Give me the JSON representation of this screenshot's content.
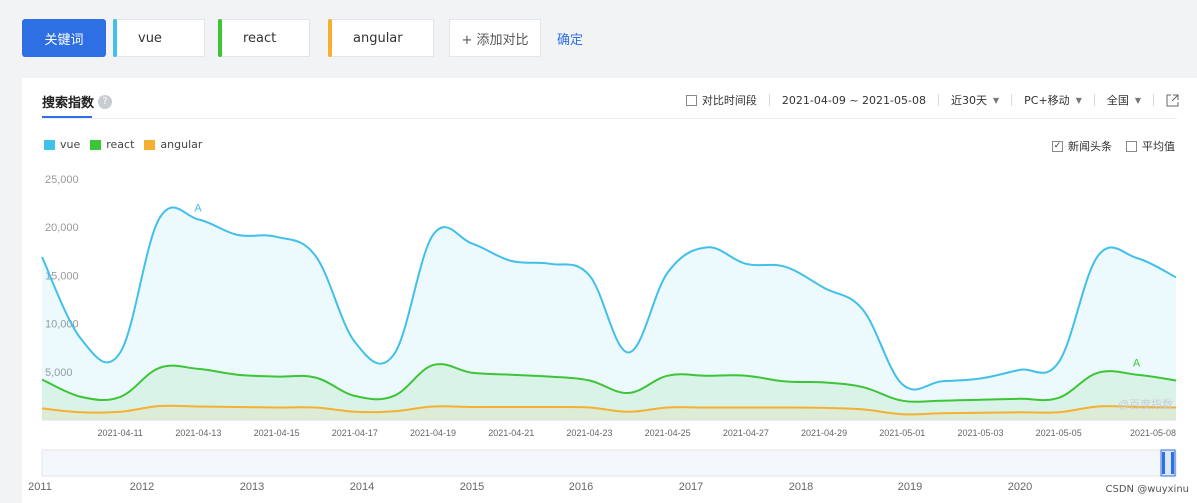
{
  "keywords": {
    "primary_label": "关键词",
    "items": [
      {
        "label": "vue",
        "color": "#41c0ea"
      },
      {
        "label": "react",
        "color": "#3cc536"
      },
      {
        "label": "angular",
        "color": "#f5b031"
      }
    ],
    "add_label": "+ 添加对比",
    "confirm_label": "确定"
  },
  "panel": {
    "tab_label": "搜索指数",
    "help_glyph": "?",
    "compare_label": "对比时间段",
    "date_range": "2021-04-09 ~ 2021-05-08",
    "period": "近30天",
    "device": "PC+移动",
    "region": "全国",
    "news_label": "新闻头条",
    "avg_label": "平均值",
    "watermark": "@百度指数"
  },
  "icons": {
    "share": "external-link-icon",
    "help": "question-circle-icon",
    "caret": "caret-down-icon"
  },
  "chart_data": {
    "type": "area",
    "x": [
      "2021-04-09",
      "2021-04-10",
      "2021-04-11",
      "2021-04-12",
      "2021-04-13",
      "2021-04-14",
      "2021-04-15",
      "2021-04-16",
      "2021-04-17",
      "2021-04-18",
      "2021-04-19",
      "2021-04-20",
      "2021-04-21",
      "2021-04-22",
      "2021-04-23",
      "2021-04-24",
      "2021-04-25",
      "2021-04-26",
      "2021-04-27",
      "2021-04-28",
      "2021-04-29",
      "2021-04-30",
      "2021-05-01",
      "2021-05-02",
      "2021-05-03",
      "2021-05-04",
      "2021-05-05",
      "2021-05-06",
      "2021-05-07",
      "2021-05-08"
    ],
    "xticks": [
      "2021-04-11",
      "2021-04-13",
      "2021-04-15",
      "2021-04-17",
      "2021-04-19",
      "2021-04-21",
      "2021-04-23",
      "2021-04-25",
      "2021-04-27",
      "2021-04-29",
      "2021-05-01",
      "2021-05-03",
      "2021-05-05",
      "2021-05-08"
    ],
    "yticks": [
      "25,000",
      "20,000",
      "15,000",
      "10,000",
      "5,000"
    ],
    "ylim": [
      0,
      25000
    ],
    "series": [
      {
        "name": "vue",
        "color": "#41c0ea",
        "values": [
          16900,
          8400,
          7000,
          20900,
          20800,
          19200,
          19000,
          17000,
          8100,
          6800,
          19200,
          18300,
          16500,
          16200,
          15000,
          7000,
          15300,
          17900,
          16200,
          15900,
          13700,
          11400,
          3700,
          4000,
          4300,
          5200,
          6000,
          17000,
          16800,
          14800
        ]
      },
      {
        "name": "react",
        "color": "#3cc536",
        "values": [
          4200,
          2400,
          2400,
          5400,
          5300,
          4700,
          4500,
          4400,
          2500,
          2500,
          5700,
          4900,
          4700,
          4500,
          4100,
          2800,
          4600,
          4600,
          4600,
          4000,
          3900,
          3400,
          2000,
          2000,
          2100,
          2200,
          2300,
          4900,
          4700,
          4100
        ]
      },
      {
        "name": "angular",
        "color": "#f5b031",
        "values": [
          1200,
          800,
          850,
          1450,
          1400,
          1350,
          1300,
          1300,
          850,
          900,
          1400,
          1350,
          1350,
          1350,
          1300,
          850,
          1300,
          1300,
          1300,
          1300,
          1250,
          1100,
          600,
          700,
          750,
          800,
          800,
          1400,
          1350,
          1300
        ]
      }
    ],
    "annotations": [
      {
        "series": "vue",
        "x": "2021-04-13",
        "text": "A"
      },
      {
        "series": "react",
        "x": "2021-05-07",
        "text": "A"
      }
    ],
    "overview_years": [
      "2011",
      "2012",
      "2013",
      "2014",
      "2015",
      "2016",
      "2017",
      "2018",
      "2019",
      "2020"
    ],
    "legend_position": "top-left",
    "grid": false
  },
  "credit": "CSDN @wuyxinu"
}
